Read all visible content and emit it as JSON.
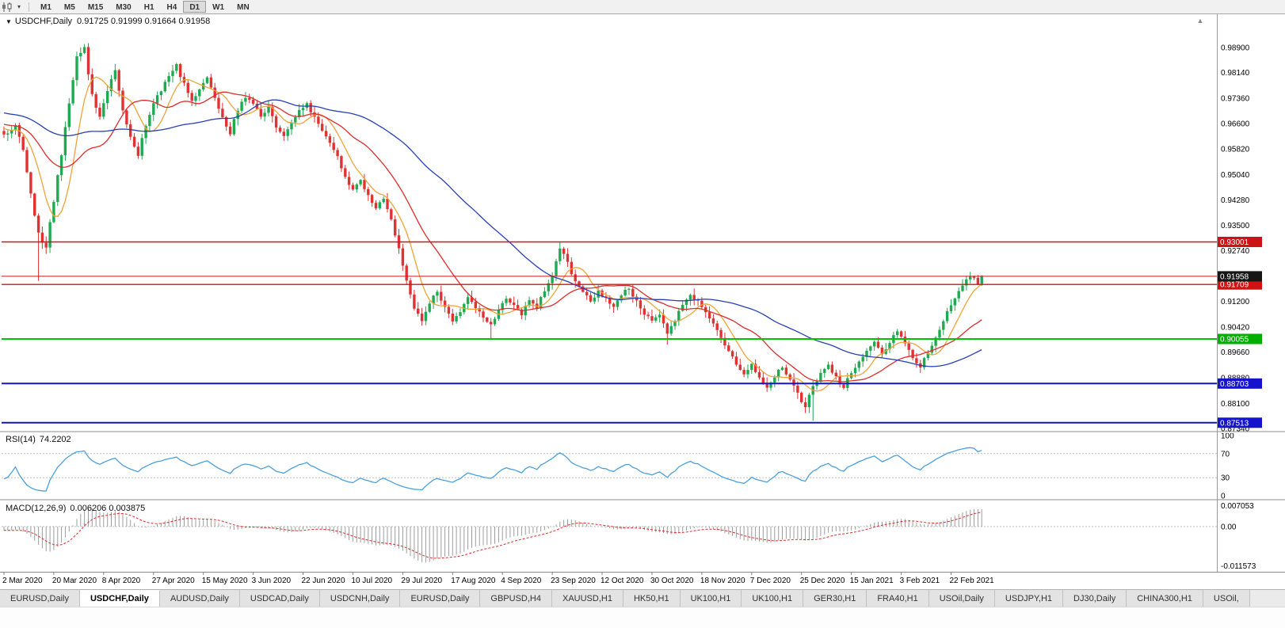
{
  "toolbar": {
    "timeframes": [
      "M1",
      "M5",
      "M15",
      "M30",
      "H1",
      "H4",
      "D1",
      "W1",
      "MN"
    ],
    "active_timeframe": "D1",
    "chart_type_icon": "candlestick-chart-icon",
    "dropdown_caret": "▾"
  },
  "chart_header": {
    "collapse_icon": "▼",
    "symbol_period": "USDCHF,Daily",
    "ohlc_text": "0.91725 0.91999 0.91664 0.91958"
  },
  "scroll_up_glyph": "▲",
  "chart_data": {
    "type": "candlestick",
    "symbol": "USDCHF",
    "period": "Daily",
    "open": 0.91725,
    "high": 0.91999,
    "low": 0.91664,
    "close": 0.91958,
    "candle_up_color": "#1daa50",
    "candle_down_color": "#e03232",
    "y_ticks": [
      0.989,
      0.9814,
      0.9736,
      0.966,
      0.9582,
      0.9504,
      0.9428,
      0.935,
      0.9274,
      0.912,
      0.9042,
      0.8966,
      0.8888,
      0.881,
      0.8734
    ],
    "x_labels": [
      "2 Mar 2020",
      "20 Mar 2020",
      "8 Apr 2020",
      "27 Apr 2020",
      "15 May 2020",
      "3 Jun 2020",
      "22 Jun 2020",
      "10 Jul 2020",
      "29 Jul 2020",
      "17 Aug 2020",
      "4 Sep 2020",
      "23 Sep 2020",
      "12 Oct 2020",
      "30 Oct 2020",
      "18 Nov 2020",
      "7 Dec 2020",
      "25 Dec 2020",
      "15 Jan 2021",
      "3 Feb 2021",
      "22 Feb 2021"
    ],
    "price_lines": [
      {
        "name": "resistance-upper",
        "price": 0.93001,
        "color": "#cc1414",
        "badge_bg": "#cc1414",
        "width": 1.4
      },
      {
        "name": "resistance-lower",
        "price": 0.91709,
        "color": "#cc1414",
        "badge_bg": "#cc1414",
        "width": 1.4
      },
      {
        "name": "support-green",
        "price": 0.90055,
        "color": "#00c300",
        "badge_bg": "#00ae00",
        "width": 2
      },
      {
        "name": "support-blue-upper",
        "price": 0.88703,
        "color": "#1414cc",
        "badge_bg": "#1414cc",
        "width": 2
      },
      {
        "name": "support-blue-lower",
        "price": 0.87513,
        "color": "#1414cc",
        "badge_bg": "#1414cc",
        "width": 2
      },
      {
        "name": "current-price",
        "price": 0.91958,
        "color": "#cc1414",
        "badge_bg": "#161616",
        "width": 1
      }
    ],
    "moving_averages": [
      {
        "period": 8,
        "color": "#efa338",
        "name": "ma-fast"
      },
      {
        "period": 21,
        "color": "#dd2c2c",
        "name": "ma-mid"
      },
      {
        "period": 55,
        "color": "#2840b4",
        "name": "ma-slow"
      }
    ],
    "pre_path": {
      "start": 0.976,
      "end": 0.964,
      "count": 60
    },
    "close_path": [
      0.963,
      0.9655,
      0.958,
      0.945,
      0.933,
      0.928,
      0.942,
      0.956,
      0.972,
      0.986,
      0.989,
      0.975,
      0.968,
      0.976,
      0.982,
      0.97,
      0.962,
      0.956,
      0.965,
      0.972,
      0.976,
      0.98,
      0.984,
      0.978,
      0.973,
      0.976,
      0.98,
      0.974,
      0.968,
      0.963,
      0.97,
      0.974,
      0.972,
      0.968,
      0.971,
      0.965,
      0.962,
      0.966,
      0.97,
      0.972,
      0.968,
      0.964,
      0.96,
      0.956,
      0.95,
      0.946,
      0.949,
      0.944,
      0.94,
      0.943,
      0.937,
      0.928,
      0.918,
      0.91,
      0.906,
      0.911,
      0.915,
      0.91,
      0.906,
      0.909,
      0.913,
      0.91,
      0.907,
      0.905,
      0.909,
      0.913,
      0.911,
      0.908,
      0.912,
      0.91,
      0.915,
      0.92,
      0.928,
      0.924,
      0.918,
      0.915,
      0.912,
      0.915,
      0.913,
      0.91,
      0.914,
      0.916,
      0.912,
      0.908,
      0.906,
      0.908,
      0.902,
      0.906,
      0.911,
      0.914,
      0.912,
      0.909,
      0.905,
      0.901,
      0.897,
      0.893,
      0.89,
      0.893,
      0.889,
      0.886,
      0.889,
      0.892,
      0.888,
      0.884,
      0.88,
      0.886,
      0.89,
      0.893,
      0.889,
      0.886,
      0.89,
      0.894,
      0.897,
      0.9,
      0.896,
      0.899,
      0.903,
      0.899,
      0.895,
      0.892,
      0.896,
      0.901,
      0.906,
      0.911,
      0.915,
      0.9185,
      0.9192,
      0.9196
    ],
    "spikes": [
      {
        "i": 9,
        "l": 0.9182
      },
      {
        "i": 21,
        "h": 0.9901
      },
      {
        "i": 127,
        "l": 0.9004
      },
      {
        "i": 145,
        "h": 0.9301
      },
      {
        "i": 173,
        "l": 0.8988
      },
      {
        "i": 211,
        "l": 0.8757
      },
      {
        "i": 253,
        "h": 0.9198
      }
    ],
    "rsi": {
      "label": "RSI(14)",
      "value": "74.2202",
      "period": 14,
      "levels": [
        100,
        70,
        30,
        0
      ],
      "color": "#4aa0dc"
    },
    "macd": {
      "label": "MACD(12,26,9)",
      "values": "0.006206 0.003875",
      "fast": 12,
      "slow": 26,
      "signal": 9,
      "axis": [
        "0.007053",
        "0.00",
        "-0.011573"
      ],
      "hist_color": "#9c9c9c",
      "signal_color": "#dd2c2c"
    }
  },
  "bottom_tabs": {
    "items": [
      "EURUSD,Daily",
      "USDCHF,Daily",
      "AUDUSD,Daily",
      "USDCAD,Daily",
      "USDCNH,Daily",
      "EURUSD,Daily",
      "GBPUSD,H4",
      "XAUUSD,H1",
      "HK50,H1",
      "UK100,H1",
      "UK100,H1",
      "GER30,H1",
      "FRA40,H1",
      "USOil,Daily",
      "USDJPY,H1",
      "DJ30,Daily",
      "CHINA300,H1",
      "USOil,"
    ],
    "active_index": 1
  }
}
